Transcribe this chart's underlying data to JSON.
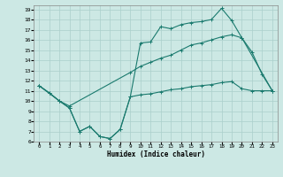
{
  "xlabel": "Humidex (Indice chaleur)",
  "bg_color": "#cce8e4",
  "line_color": "#1a7a6e",
  "grid_color": "#aacfcb",
  "xlim": [
    -0.5,
    23.5
  ],
  "ylim": [
    6,
    19.4
  ],
  "xticks": [
    0,
    1,
    2,
    3,
    4,
    5,
    6,
    7,
    8,
    9,
    10,
    11,
    12,
    13,
    14,
    15,
    16,
    17,
    18,
    19,
    20,
    21,
    22,
    23
  ],
  "yticks": [
    6,
    7,
    8,
    9,
    10,
    11,
    12,
    13,
    14,
    15,
    16,
    17,
    18,
    19
  ],
  "line1_x": [
    0,
    1,
    2,
    3,
    4,
    5,
    6,
    7,
    8,
    9,
    10,
    11,
    12,
    13,
    14,
    15,
    16,
    17,
    18,
    19,
    20,
    21,
    22,
    23
  ],
  "line1_y": [
    11.5,
    10.8,
    10.0,
    9.3,
    7.0,
    7.5,
    6.5,
    6.3,
    7.2,
    10.4,
    15.7,
    15.8,
    17.3,
    17.1,
    17.5,
    17.7,
    17.8,
    18.0,
    19.1,
    17.9,
    16.2,
    14.8,
    12.6,
    11.0
  ],
  "line2_x": [
    0,
    2,
    3,
    9,
    10,
    11,
    12,
    13,
    14,
    15,
    16,
    17,
    18,
    19,
    20,
    23
  ],
  "line2_y": [
    11.5,
    10.0,
    9.5,
    12.8,
    13.4,
    13.8,
    14.2,
    14.5,
    15.0,
    15.5,
    15.7,
    16.0,
    16.3,
    16.5,
    16.2,
    11.0
  ],
  "line3_x": [
    0,
    1,
    2,
    3,
    4,
    5,
    6,
    7,
    8,
    9,
    10,
    11,
    12,
    13,
    14,
    15,
    16,
    17,
    18,
    19,
    20,
    21,
    22,
    23
  ],
  "line3_y": [
    11.5,
    10.8,
    10.0,
    9.3,
    7.0,
    7.5,
    6.5,
    6.3,
    7.2,
    10.4,
    10.6,
    10.7,
    10.9,
    11.1,
    11.2,
    11.4,
    11.5,
    11.6,
    11.8,
    11.9,
    11.2,
    11.0,
    11.0,
    11.0
  ]
}
